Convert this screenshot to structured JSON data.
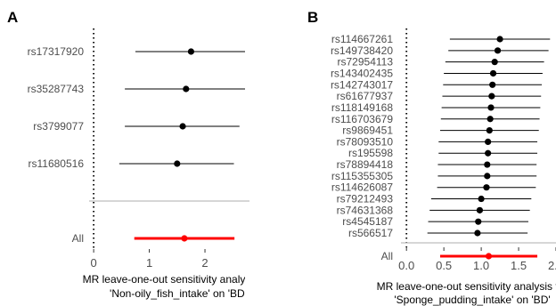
{
  "chart_data": [
    {
      "type": "forest",
      "panel_label": "A",
      "xlabel_lines": [
        "MR leave-one-out sensitivity analysis for",
        "'Non-oily_fish_intake' on 'BD'"
      ],
      "xlim": [
        -0.05,
        2.8
      ],
      "xticks": [
        0,
        1,
        2
      ],
      "reference_x": 0,
      "rows": [
        {
          "label": "rs17317920",
          "estimate": 1.75,
          "lower": 0.75,
          "upper": 2.72
        },
        {
          "label": "rs35287743",
          "estimate": 1.66,
          "lower": 0.56,
          "upper": 2.72
        },
        {
          "label": "rs3799077",
          "estimate": 1.6,
          "lower": 0.56,
          "upper": 2.62
        },
        {
          "label": "rs11680516",
          "estimate": 1.5,
          "lower": 0.46,
          "upper": 2.52
        }
      ],
      "overall": {
        "label": "All",
        "estimate": 1.63,
        "lower": 0.73,
        "upper": 2.53
      }
    },
    {
      "type": "forest",
      "panel_label": "B",
      "xlabel_lines": [
        "MR leave-one-out sensitivity analysis for",
        "'Sponge_pudding_intake' on 'BD'"
      ],
      "xlim": [
        -0.05,
        2.0
      ],
      "xticks": [
        0.0,
        0.5,
        1.0,
        1.5,
        2.0
      ],
      "xtick_labels": [
        "0.0",
        "0.5",
        "1.0",
        "1.5",
        "2.0"
      ],
      "reference_x": 0,
      "rows": [
        {
          "label": "rs114667261",
          "estimate": 1.25,
          "lower": 0.58,
          "upper": 1.92
        },
        {
          "label": "rs149738420",
          "estimate": 1.22,
          "lower": 0.56,
          "upper": 1.9
        },
        {
          "label": "rs72954113",
          "estimate": 1.18,
          "lower": 0.52,
          "upper": 1.84
        },
        {
          "label": "rs143402435",
          "estimate": 1.16,
          "lower": 0.5,
          "upper": 1.82
        },
        {
          "label": "rs142743017",
          "estimate": 1.15,
          "lower": 0.49,
          "upper": 1.81
        },
        {
          "label": "rs61677937",
          "estimate": 1.14,
          "lower": 0.48,
          "upper": 1.8
        },
        {
          "label": "rs118149168",
          "estimate": 1.13,
          "lower": 0.47,
          "upper": 1.79
        },
        {
          "label": "rs116703679",
          "estimate": 1.12,
          "lower": 0.46,
          "upper": 1.78
        },
        {
          "label": "rs9869451",
          "estimate": 1.11,
          "lower": 0.45,
          "upper": 1.77
        },
        {
          "label": "rs78093510",
          "estimate": 1.09,
          "lower": 0.43,
          "upper": 1.75
        },
        {
          "label": "rs195598",
          "estimate": 1.09,
          "lower": 0.43,
          "upper": 1.75
        },
        {
          "label": "rs78894418",
          "estimate": 1.08,
          "lower": 0.42,
          "upper": 1.74
        },
        {
          "label": "rs115355305",
          "estimate": 1.08,
          "lower": 0.42,
          "upper": 1.74
        },
        {
          "label": "rs114626087",
          "estimate": 1.07,
          "lower": 0.41,
          "upper": 1.73
        },
        {
          "label": "rs79212493",
          "estimate": 1.0,
          "lower": 0.33,
          "upper": 1.67
        },
        {
          "label": "rs74631368",
          "estimate": 0.98,
          "lower": 0.31,
          "upper": 1.65
        },
        {
          "label": "rs4545187",
          "estimate": 0.96,
          "lower": 0.29,
          "upper": 1.63
        },
        {
          "label": "rs566517",
          "estimate": 0.95,
          "lower": 0.28,
          "upper": 1.62
        }
      ],
      "overall": {
        "label": "All",
        "estimate": 1.1,
        "lower": 0.45,
        "upper": 1.75
      }
    }
  ],
  "colors": {
    "point": "#000000",
    "overall": "#ff0000",
    "separator": "#bebebe",
    "reference_line": "#000000",
    "tick_text": "#4d4d4d"
  }
}
